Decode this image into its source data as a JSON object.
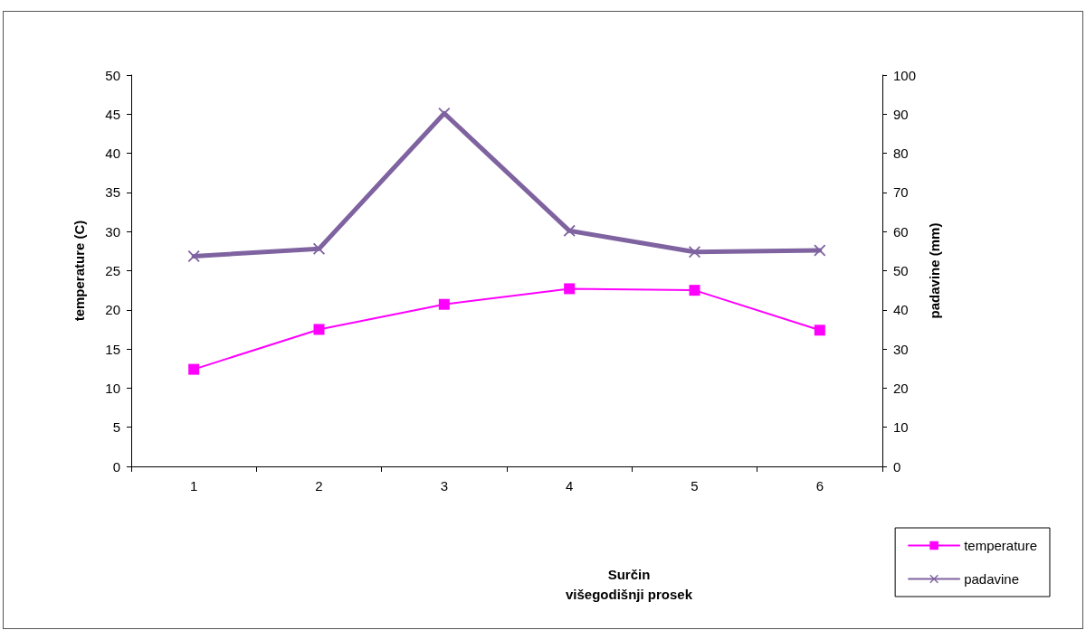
{
  "chart_data": {
    "type": "line",
    "title": "Surčin\nvišegodišnji prosek",
    "ylabel": "temperature (C)",
    "y2label": "padavine (mm)",
    "categories": [
      "1",
      "2",
      "3",
      "4",
      "5",
      "6"
    ],
    "series": [
      {
        "name": "temperature",
        "color": "#ff00ff",
        "marker": "square",
        "values": [
          12.4,
          17.5,
          20.7,
          22.7,
          22.5,
          17.4
        ]
      },
      {
        "name": "padavine",
        "color": "#7f63a0",
        "marker": "cross",
        "axis": "y2",
        "values": [
          53.7,
          55.6,
          90.2,
          60.2,
          54.8,
          55.2
        ]
      }
    ],
    "ylim": [
      0,
      50
    ],
    "yticks": [
      0,
      5,
      10,
      15,
      20,
      25,
      30,
      35,
      40,
      45,
      50
    ],
    "y2lim": [
      0,
      100
    ],
    "y2ticks": [
      0,
      10,
      20,
      30,
      40,
      50,
      60,
      70,
      80,
      90,
      100
    ],
    "legend": "bottom right",
    "grid": false
  }
}
